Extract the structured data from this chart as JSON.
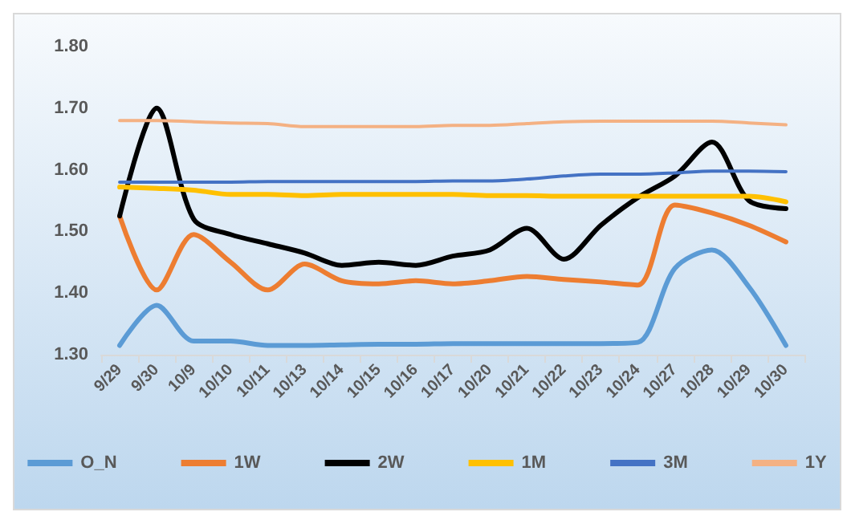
{
  "chart_data": {
    "type": "line",
    "categories": [
      "9/29",
      "9/30",
      "10/9",
      "10/10",
      "10/11",
      "10/13",
      "10/14",
      "10/15",
      "10/16",
      "10/17",
      "10/20",
      "10/21",
      "10/22",
      "10/23",
      "10/24",
      "10/27",
      "10/28",
      "10/29",
      "10/30"
    ],
    "series": [
      {
        "name": "O_N",
        "color": "#5b9bd5",
        "values": [
          1.315,
          1.38,
          1.322,
          1.322,
          1.315,
          1.315,
          1.316,
          1.317,
          1.317,
          1.318,
          1.318,
          1.318,
          1.318,
          1.318,
          1.32,
          1.44,
          1.47,
          1.41,
          1.315
        ]
      },
      {
        "name": "1W",
        "color": "#ed7d31",
        "values": [
          1.525,
          1.405,
          1.495,
          1.45,
          1.405,
          1.447,
          1.42,
          1.415,
          1.42,
          1.415,
          1.42,
          1.427,
          1.422,
          1.418,
          1.413,
          1.543,
          1.53,
          1.51,
          1.483
        ]
      },
      {
        "name": "2W",
        "color": "#000000",
        "values": [
          1.525,
          1.7,
          1.52,
          1.495,
          1.48,
          1.465,
          1.445,
          1.45,
          1.445,
          1.46,
          1.47,
          1.505,
          1.455,
          1.51,
          1.555,
          1.59,
          1.645,
          1.55,
          1.537
        ]
      },
      {
        "name": "1M",
        "color": "#ffc000",
        "values": [
          1.572,
          1.57,
          1.567,
          1.56,
          1.56,
          1.558,
          1.56,
          1.56,
          1.56,
          1.56,
          1.558,
          1.558,
          1.557,
          1.557,
          1.557,
          1.557,
          1.557,
          1.557,
          1.548
        ]
      },
      {
        "name": "3M",
        "color": "#4472c4",
        "values": [
          1.58,
          1.58,
          1.58,
          1.58,
          1.581,
          1.581,
          1.581,
          1.581,
          1.581,
          1.582,
          1.582,
          1.585,
          1.59,
          1.593,
          1.593,
          1.595,
          1.598,
          1.598,
          1.597
        ]
      },
      {
        "name": "1Y",
        "color": "#f4b183",
        "values": [
          1.68,
          1.68,
          1.678,
          1.676,
          1.675,
          1.67,
          1.67,
          1.67,
          1.67,
          1.672,
          1.672,
          1.675,
          1.678,
          1.679,
          1.679,
          1.679,
          1.679,
          1.676,
          1.673
        ]
      }
    ],
    "ylim": [
      1.3,
      1.8
    ],
    "yticks": [
      {
        "value": 1.3,
        "label": "1.30"
      },
      {
        "value": 1.4,
        "label": "1.40"
      },
      {
        "value": 1.5,
        "label": "1.50"
      },
      {
        "value": 1.6,
        "label": "1.60"
      },
      {
        "value": 1.7,
        "label": "1.70"
      },
      {
        "value": 1.8,
        "label": "1.80"
      }
    ],
    "grid": false,
    "legend": "bottom",
    "marker": "none",
    "line_style": "solid"
  }
}
